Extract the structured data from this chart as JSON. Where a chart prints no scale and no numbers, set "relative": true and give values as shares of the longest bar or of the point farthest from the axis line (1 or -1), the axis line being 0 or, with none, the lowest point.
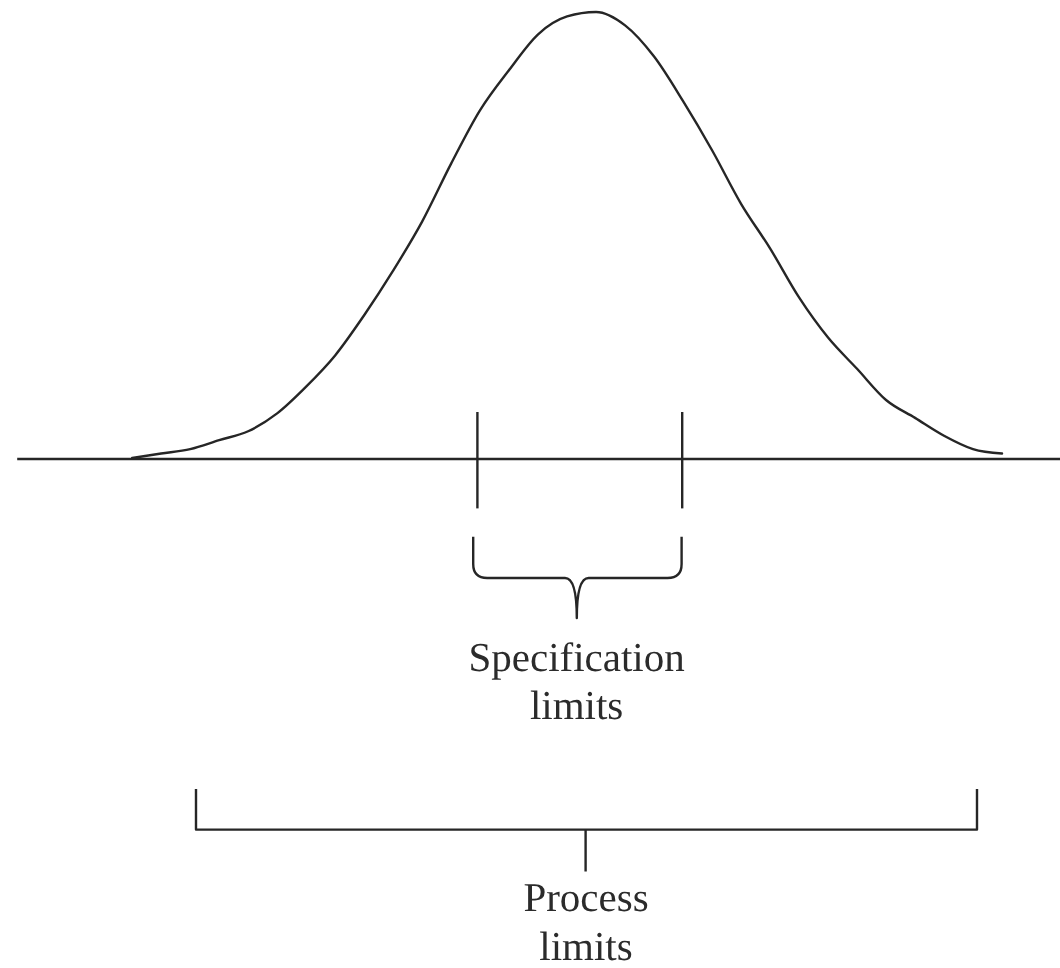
{
  "chart_data": {
    "type": "line",
    "relative": true,
    "color": "#262626",
    "categories": [
      null,
      null,
      null,
      null,
      null,
      null,
      null,
      null,
      null,
      null,
      null,
      null,
      null,
      null,
      null,
      null,
      null,
      null,
      null,
      null,
      null,
      null,
      null,
      null,
      null,
      null,
      null,
      null,
      null,
      null,
      null,
      null,
      null,
      null,
      null,
      null,
      null
    ],
    "values": [
      null,
      null,
      null,
      null,
      0.0,
      0.01,
      0.02,
      0.04,
      0.06,
      0.1,
      0.16,
      0.23,
      0.32,
      0.42,
      0.53,
      0.66,
      0.78,
      0.87,
      0.95,
      0.99,
      1.0,
      0.97,
      0.9,
      0.8,
      0.69,
      0.57,
      0.47,
      0.36,
      0.27,
      0.2,
      0.13,
      0.09,
      0.05,
      0.02,
      0.01,
      null,
      null
    ],
    "annotations": [
      "Specification\nlimits",
      "Process\nlimits"
    ]
  }
}
